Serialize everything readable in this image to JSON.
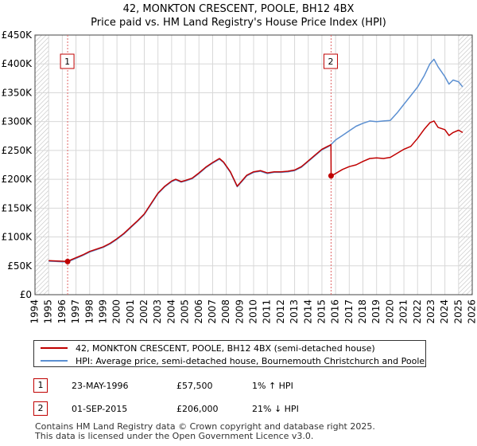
{
  "title_line1": "42, MONKTON CRESCENT, POOLE, BH12 4BX",
  "title_line2": "Price paid vs. HM Land Registry's House Price Index (HPI)",
  "legend": {
    "red_label": "42, MONKTON CRESCENT, POOLE, BH12 4BX (semi-detached house)",
    "blue_label": "HPI: Average price, semi-detached house, Bournemouth Christchurch and Poole"
  },
  "transactions": [
    {
      "num": "1",
      "date": "23-MAY-1996",
      "price": "£57,500",
      "hpi": "1% ↑ HPI"
    },
    {
      "num": "2",
      "date": "01-SEP-2015",
      "price": "£206,000",
      "hpi": "21% ↓ HPI"
    }
  ],
  "footer": {
    "line1": "Contains HM Land Registry data © Crown copyright and database right 2025.",
    "line2": "This data is licensed under the Open Government Licence v3.0."
  },
  "colors": {
    "red": "#c00000",
    "blue": "#5b8fd1",
    "grid": "#d8d8d8",
    "vline": "#e06666",
    "hatch": "#bfbfbf"
  },
  "chart_data": {
    "type": "line",
    "title": "42, MONKTON CRESCENT, POOLE, BH12 4BX — Price paid vs. HM Land Registry's House Price Index (HPI)",
    "xlabel": "",
    "ylabel": "",
    "xlim": [
      1994,
      2026
    ],
    "ylim": [
      0,
      450000
    ],
    "x_ticks": [
      1994,
      1995,
      1996,
      1997,
      1998,
      1999,
      2000,
      2001,
      2002,
      2003,
      2004,
      2005,
      2006,
      2007,
      2008,
      2009,
      2010,
      2011,
      2012,
      2013,
      2014,
      2015,
      2016,
      2017,
      2018,
      2019,
      2020,
      2021,
      2022,
      2023,
      2024,
      2025,
      2026
    ],
    "y_ticks": [
      {
        "value": 0,
        "label": "£0"
      },
      {
        "value": 50000,
        "label": "£50K"
      },
      {
        "value": 100000,
        "label": "£100K"
      },
      {
        "value": 150000,
        "label": "£150K"
      },
      {
        "value": 200000,
        "label": "£200K"
      },
      {
        "value": 250000,
        "label": "£250K"
      },
      {
        "value": 300000,
        "label": "£300K"
      },
      {
        "value": 350000,
        "label": "£350K"
      },
      {
        "value": 400000,
        "label": "£400K"
      },
      {
        "value": 450000,
        "label": "£450K"
      }
    ],
    "hatched_regions": [
      [
        1994,
        1995.0
      ],
      [
        2025.0,
        2026
      ]
    ],
    "series": [
      {
        "name": "42, MONKTON CRESCENT, POOLE, BH12 4BX (semi-detached house)",
        "color": "#c00000",
        "x": [
          1995.0,
          1995.5,
          1996.0,
          1996.39,
          1996.6,
          1997.0,
          1997.5,
          1998.0,
          1998.5,
          1999.0,
          1999.5,
          2000.0,
          2000.5,
          2001.0,
          2001.5,
          2002.0,
          2002.5,
          2003.0,
          2003.5,
          2004.0,
          2004.3,
          2004.7,
          2005.0,
          2005.5,
          2006.0,
          2006.5,
          2007.0,
          2007.5,
          2007.8,
          2008.3,
          2008.8,
          2009.1,
          2009.5,
          2010.0,
          2010.5,
          2011.0,
          2011.5,
          2012.0,
          2012.5,
          2013.0,
          2013.5,
          2014.0,
          2014.5,
          2015.0,
          2015.5,
          2015.66,
          2015.67,
          2016.0,
          2016.5,
          2017.0,
          2017.5,
          2018.0,
          2018.5,
          2019.0,
          2019.5,
          2020.0,
          2020.5,
          2021.0,
          2021.5,
          2022.0,
          2022.5,
          2022.9,
          2023.2,
          2023.5,
          2024.0,
          2024.3,
          2024.6,
          2025.0,
          2025.3
        ],
        "y": [
          59000,
          58500,
          58000,
          57500,
          60000,
          64000,
          69000,
          75000,
          79000,
          83000,
          89000,
          97000,
          106000,
          117000,
          128000,
          140000,
          158000,
          176000,
          188000,
          197000,
          200000,
          196000,
          198000,
          202000,
          211000,
          221000,
          229000,
          236000,
          230000,
          213000,
          188000,
          196000,
          207000,
          213000,
          215000,
          211000,
          213000,
          213000,
          214000,
          216000,
          222000,
          232000,
          242000,
          252000,
          258000,
          260000,
          206000,
          210000,
          217000,
          222000,
          225000,
          231000,
          236000,
          237000,
          236000,
          238000,
          245000,
          252000,
          257000,
          271000,
          287000,
          298000,
          301000,
          290000,
          286000,
          276000,
          281000,
          285000,
          281000
        ]
      },
      {
        "name": "HPI: Average price, semi-detached house, Bournemouth Christchurch and Poole",
        "color": "#5b8fd1",
        "x": [
          1995.0,
          1995.5,
          1996.0,
          1996.39,
          1996.6,
          1997.0,
          1997.5,
          1998.0,
          1998.5,
          1999.0,
          1999.5,
          2000.0,
          2000.5,
          2001.0,
          2001.5,
          2002.0,
          2002.5,
          2003.0,
          2003.5,
          2004.0,
          2004.3,
          2004.7,
          2005.0,
          2005.5,
          2006.0,
          2006.5,
          2007.0,
          2007.5,
          2007.8,
          2008.3,
          2008.8,
          2009.1,
          2009.5,
          2010.0,
          2010.5,
          2011.0,
          2011.5,
          2012.0,
          2012.5,
          2013.0,
          2013.5,
          2014.0,
          2014.5,
          2015.0,
          2015.5,
          2015.66,
          2016.0,
          2016.5,
          2017.0,
          2017.5,
          2018.0,
          2018.5,
          2019.0,
          2019.5,
          2020.0,
          2020.5,
          2021.0,
          2021.5,
          2022.0,
          2022.5,
          2022.9,
          2023.2,
          2023.5,
          2024.0,
          2024.3,
          2024.6,
          2025.0,
          2025.3
        ],
        "y": [
          58000,
          57500,
          57000,
          57000,
          59000,
          63000,
          68000,
          74000,
          78000,
          82000,
          88000,
          96000,
          105000,
          116000,
          127000,
          139000,
          157000,
          175000,
          187000,
          196000,
          199000,
          195000,
          197000,
          201000,
          210000,
          220000,
          228000,
          235000,
          229000,
          212000,
          187000,
          195000,
          206000,
          212000,
          214000,
          210000,
          212000,
          212000,
          213000,
          215000,
          221000,
          231000,
          241000,
          251000,
          257000,
          260000,
          268000,
          276000,
          284000,
          292000,
          297000,
          301000,
          300000,
          301000,
          302000,
          315000,
          330000,
          345000,
          360000,
          380000,
          400000,
          408000,
          395000,
          378000,
          365000,
          372000,
          369000,
          360000
        ]
      }
    ],
    "markers": [
      {
        "label": "1",
        "x": 1996.39,
        "y": 57500
      },
      {
        "label": "2",
        "x": 2015.67,
        "y": 206000
      }
    ]
  }
}
